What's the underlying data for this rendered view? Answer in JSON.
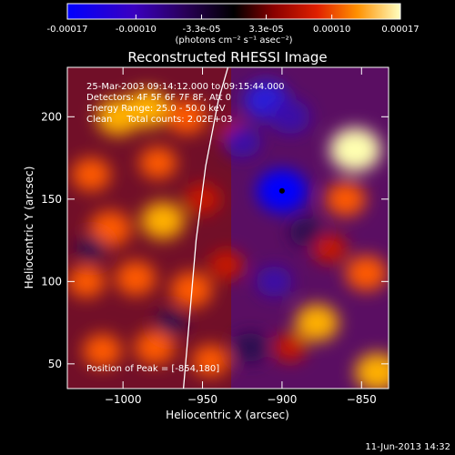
{
  "chart_data": {
    "type": "heatmap",
    "title": "Reconstructed RHESSI Image",
    "colorbar": {
      "tick_labels": [
        "-0.00017",
        "-0.00010",
        "-3.3e-05",
        "3.3e-05",
        "0.00010",
        "0.00017"
      ],
      "tick_values": [
        -0.00017,
        -0.0001,
        -3.3e-05,
        3.3e-05,
        0.0001,
        0.00017
      ],
      "range": [
        -0.00017,
        0.00017
      ],
      "units_label": "(photons cm⁻² s⁻¹ asec⁻²)"
    },
    "xlabel": "Heliocentric X (arcsec)",
    "ylabel": "Heliocentric Y (arcsec)",
    "xlim": [
      -1035,
      -833
    ],
    "ylim": [
      35,
      230
    ],
    "x_ticks": [
      -1000,
      -950,
      -900,
      -850
    ],
    "x_tick_labels": [
      "−1000",
      "−950",
      "−900",
      "−850"
    ],
    "y_ticks": [
      50,
      100,
      150,
      200
    ],
    "y_tick_labels": [
      "50",
      "100",
      "150",
      "200"
    ],
    "annotations": [
      "25-Mar-2003 09:14:12.000 to 09:15:44.000",
      "Detectors: 4F 5F 6F 7F 8F, Att 0",
      "Energy Range: 25.0 - 50.0 keV",
      "Clean     Total counts: 2.02E+03"
    ],
    "peak_label": "Position of Peak = [-854,180]",
    "peak_position": [
      -854,
      180
    ],
    "limb_curve": [
      [
        -962,
        35
      ],
      [
        -958,
        80
      ],
      [
        -954,
        125
      ],
      [
        -948,
        170
      ],
      [
        -940,
        210
      ],
      [
        -934,
        230
      ]
    ],
    "hot_spots": [
      {
        "x": -1003,
        "y": 200,
        "v": 0.00012
      },
      {
        "x": -985,
        "y": 205,
        "v": 0.00013
      },
      {
        "x": -1020,
        "y": 165,
        "v": 9e-05
      },
      {
        "x": -978,
        "y": 172,
        "v": 8e-05
      },
      {
        "x": -960,
        "y": 200,
        "v": 0.0001
      },
      {
        "x": -1008,
        "y": 132,
        "v": 0.00011
      },
      {
        "x": -975,
        "y": 137,
        "v": 0.00012
      },
      {
        "x": -950,
        "y": 150,
        "v": 7e-05
      },
      {
        "x": -992,
        "y": 102,
        "v": 0.0001
      },
      {
        "x": -1023,
        "y": 100,
        "v": 8e-05
      },
      {
        "x": -957,
        "y": 95,
        "v": 0.00011
      },
      {
        "x": -1013,
        "y": 58,
        "v": 9e-05
      },
      {
        "x": -980,
        "y": 60,
        "v": 0.0001
      },
      {
        "x": -945,
        "y": 52,
        "v": 8e-05
      },
      {
        "x": -935,
        "y": 110,
        "v": 6e-05
      },
      {
        "x": -930,
        "y": 190,
        "v": 4e-05
      },
      {
        "x": -854,
        "y": 180,
        "v": 0.00017
      },
      {
        "x": -860,
        "y": 150,
        "v": 0.0001
      },
      {
        "x": -847,
        "y": 105,
        "v": 0.00011
      },
      {
        "x": -878,
        "y": 75,
        "v": 0.00012
      },
      {
        "x": -840,
        "y": 45,
        "v": 0.00013
      },
      {
        "x": -870,
        "y": 120,
        "v": 6e-05
      },
      {
        "x": -895,
        "y": 60,
        "v": 5e-05
      }
    ],
    "cold_spots": [
      {
        "x": -900,
        "y": 155,
        "v": -0.00017
      },
      {
        "x": -910,
        "y": 210,
        "v": -0.00013
      },
      {
        "x": -895,
        "y": 200,
        "v": -0.0001
      },
      {
        "x": -925,
        "y": 185,
        "v": -8e-05
      },
      {
        "x": -905,
        "y": 100,
        "v": -7e-05
      },
      {
        "x": -920,
        "y": 60,
        "v": -6e-05
      },
      {
        "x": -885,
        "y": 130,
        "v": -5e-05
      },
      {
        "x": -1020,
        "y": 120,
        "v": -3e-05
      },
      {
        "x": -970,
        "y": 75,
        "v": -3e-05
      }
    ]
  },
  "footer": {
    "date": "11-Jun-2013 14:32"
  }
}
